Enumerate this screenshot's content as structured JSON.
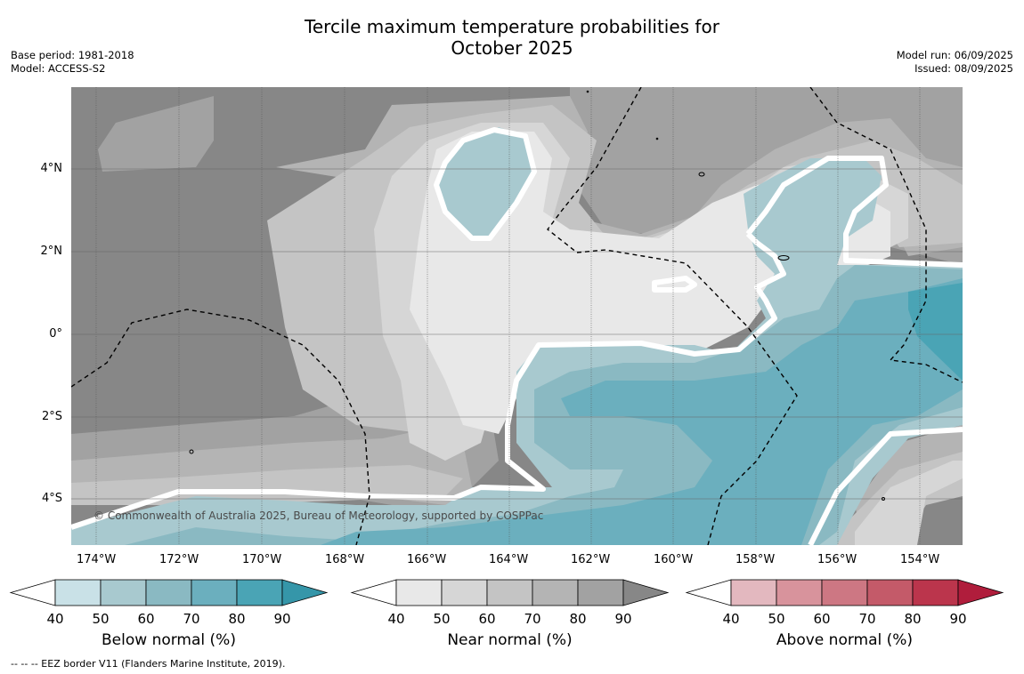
{
  "title_line1": "Tercile maximum temperature probabilities for",
  "title_line2": "October 2025",
  "left_meta": {
    "base_period": "Base period: 1981-2018",
    "model": "Model: ACCESS-S2"
  },
  "right_meta": {
    "model_run": "Model run: 06/09/2025",
    "issued": "Issued: 08/09/2025"
  },
  "longitude_labels": [
    "174°W",
    "172°W",
    "170°W",
    "168°W",
    "166°W",
    "164°W",
    "162°W",
    "160°W",
    "158°W",
    "156°W",
    "154°W"
  ],
  "latitude_labels": [
    "4°N",
    "2°N",
    "0°",
    "2°S",
    "4°S"
  ],
  "copyright": "© Commonwealth of Australia 2025, Bureau of Meteorology, supported by COSPPac",
  "legends": [
    {
      "caption": "Below normal (%)",
      "ticks": [
        "40",
        "50",
        "60",
        "70",
        "80",
        "90"
      ],
      "colors": [
        "#ffffff",
        "#c9e1e7",
        "#a8c9cf",
        "#8ab9c2",
        "#6bafbe",
        "#4aa4b5",
        "#3596a9"
      ]
    },
    {
      "caption": "Near normal (%)",
      "ticks": [
        "40",
        "50",
        "60",
        "70",
        "80",
        "90"
      ],
      "colors": [
        "#ffffff",
        "#e8e8e8",
        "#d6d6d6",
        "#c4c4c4",
        "#b4b4b4",
        "#a2a2a2",
        "#878787"
      ]
    },
    {
      "caption": "Above normal (%)",
      "ticks": [
        "40",
        "50",
        "60",
        "70",
        "80",
        "90"
      ],
      "colors": [
        "#ffffff",
        "#e3b8bf",
        "#d8939c",
        "#cd7783",
        "#c45a69",
        "#bb354c",
        "#b01d3c"
      ]
    }
  ],
  "footnote": "--  --  -- EEZ border V11 (Flanders Marine Institute, 2019).",
  "map_colors": {
    "near_90": "#878787",
    "near_80": "#a2a2a2",
    "near_70": "#b4b4b4",
    "near_60": "#c4c4c4",
    "near_50": "#d6d6d6",
    "near_40": "#e8e8e8",
    "below_50": "#a8c9cf",
    "below_60": "#8ab9c2",
    "below_70": "#6bafbe",
    "below_80": "#4aa4b5"
  }
}
